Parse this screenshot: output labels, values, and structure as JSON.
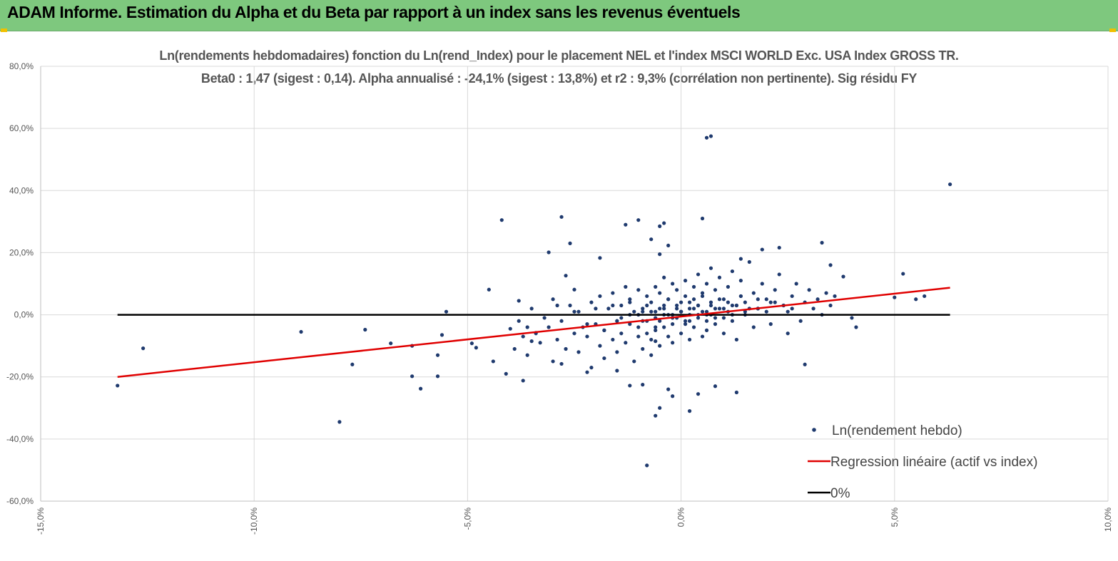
{
  "header": {
    "banner_title": "ADAM Informe. Estimation du Alpha et du Beta par rapport à un index sans les revenus éventuels"
  },
  "colors": {
    "banner": "#7ec87e",
    "points": "#1f3a6e",
    "regression": "#e00000",
    "zero_line": "#000000",
    "grid": "#d9d9d9"
  },
  "chart_data": {
    "type": "scatter",
    "title": "Ln(rendements hebdomadaires) fonction du Ln(rend_Index) pour le placement NEL et l'index MSCI WORLD Exc. USA Index GROSS TR.",
    "subtitle": "Beta0 : 1,47  (sigest : 0,14).  Alpha annualisé : -24,1% (sigest : 13,8%) et r2 : 9,3% (corrélation non pertinente). Sig résidu FY",
    "xlim": [
      -0.15,
      0.1
    ],
    "ylim": [
      -0.6,
      0.8
    ],
    "x_ticks": [
      "-15,0%",
      "-10,0%",
      "-5,0%",
      "0,0%",
      "5,0%",
      "10,0%"
    ],
    "y_ticks": [
      "80,0%",
      "60,0%",
      "40,0%",
      "20,0%",
      "0,0%",
      "-20,0%",
      "-40,0%",
      "-60,0%"
    ],
    "grid": true,
    "legend_position": "bottom-right",
    "legend": [
      "Ln(rendement hebdo)",
      "Regression linéaire (actif vs index)",
      "0%"
    ],
    "regression": {
      "x": [
        -0.132,
        0.063
      ],
      "y": [
        -0.2,
        0.087
      ]
    },
    "zero_line": {
      "x": [
        -0.132,
        0.063
      ],
      "y": [
        0,
        0
      ]
    },
    "points": {
      "x": [
        -0.132,
        -0.126,
        -0.089,
        -0.08,
        -0.077,
        -0.074,
        -0.068,
        -0.063,
        -0.063,
        -0.061,
        -0.057,
        -0.057,
        -0.056,
        -0.055,
        -0.049,
        -0.048,
        -0.045,
        -0.044,
        -0.042,
        -0.041,
        -0.038,
        -0.037,
        -0.036,
        -0.035,
        -0.034,
        -0.031,
        -0.029,
        -0.028,
        -0.028,
        -0.027,
        -0.026,
        -0.025,
        -0.022,
        -0.019,
        -0.015,
        -0.013,
        -0.012,
        -0.01,
        -0.009,
        -0.008,
        -0.007,
        -0.006,
        -0.006,
        -0.005,
        -0.005,
        -0.005,
        -0.004,
        -0.003,
        -0.003,
        -0.002,
        0.002,
        0.004,
        0.005,
        0.006,
        0.007,
        0.008,
        0.013,
        0.014,
        0.019,
        0.023,
        0.025,
        0.029,
        0.033,
        0.035,
        0.038,
        0.04,
        0.041,
        0.05,
        0.052,
        0.055,
        0.057,
        0.063,
        -0.04,
        -0.039,
        -0.038,
        -0.037,
        -0.036,
        -0.035,
        -0.034,
        -0.033,
        -0.032,
        -0.031,
        -0.03,
        -0.03,
        -0.029,
        -0.028,
        -0.027,
        -0.026,
        -0.025,
        -0.024,
        -0.024,
        -0.023,
        -0.022,
        -0.021,
        -0.021,
        -0.02,
        -0.019,
        -0.019,
        -0.018,
        -0.018,
        -0.017,
        -0.016,
        -0.016,
        -0.015,
        -0.015,
        -0.014,
        -0.014,
        -0.013,
        -0.013,
        -0.012,
        -0.012,
        -0.011,
        -0.011,
        -0.01,
        -0.01,
        -0.01,
        -0.009,
        -0.009,
        -0.008,
        -0.008,
        -0.008,
        -0.007,
        -0.007,
        -0.007,
        -0.006,
        -0.006,
        -0.006,
        -0.005,
        -0.005,
        -0.005,
        -0.004,
        -0.004,
        -0.004,
        -0.003,
        -0.003,
        -0.003,
        -0.002,
        -0.002,
        -0.002,
        -0.001,
        -0.001,
        -0.001,
        0.0,
        0.0,
        0.0,
        0.001,
        0.001,
        0.001,
        0.002,
        0.002,
        0.002,
        0.003,
        0.003,
        0.003,
        0.004,
        0.004,
        0.004,
        0.005,
        0.005,
        0.005,
        0.006,
        0.006,
        0.006,
        0.007,
        0.007,
        0.007,
        0.008,
        0.008,
        0.009,
        0.009,
        0.01,
        0.01,
        0.011,
        0.011,
        0.012,
        0.012,
        0.013,
        0.013,
        0.014,
        0.014,
        0.015,
        0.015,
        0.016,
        0.017,
        0.017,
        0.018,
        0.019,
        0.02,
        0.021,
        0.022,
        0.023,
        0.024,
        0.025,
        0.026,
        0.027,
        0.028,
        0.029,
        0.03,
        0.031,
        0.032,
        0.033,
        0.034,
        0.035,
        0.036,
        -0.025,
        -0.022,
        -0.02,
        -0.018,
        -0.016,
        -0.014,
        -0.012,
        -0.01,
        -0.009,
        -0.008,
        -0.007,
        -0.006,
        -0.005,
        -0.004,
        -0.003,
        -0.002,
        -0.001,
        0.0,
        0.001,
        0.002,
        0.003,
        0.004,
        0.005,
        0.006,
        0.007,
        0.008,
        0.009,
        0.01,
        0.011,
        0.012,
        0.013,
        0.014,
        0.016,
        0.018,
        0.02,
        0.022,
        0.024,
        0.026,
        -0.015,
        -0.012,
        -0.009,
        -0.006,
        -0.004,
        -0.002,
        0.0,
        0.002,
        0.004,
        0.006,
        0.008,
        0.01,
        0.012,
        0.015,
        0.018,
        0.021
      ],
      "y": [
        -0.228,
        -0.108,
        -0.055,
        -0.345,
        -0.16,
        -0.048,
        -0.092,
        -0.198,
        -0.1,
        -0.238,
        -0.198,
        -0.13,
        -0.065,
        0.01,
        -0.092,
        -0.106,
        0.081,
        -0.15,
        0.305,
        -0.19,
        0.045,
        -0.212,
        -0.04,
        -0.085,
        -0.058,
        0.201,
        0.03,
        0.315,
        -0.158,
        0.126,
        0.23,
        0.081,
        -0.185,
        0.183,
        -0.18,
        0.29,
        -0.228,
        0.305,
        -0.225,
        -0.485,
        0.243,
        -0.325,
        -0.085,
        0.285,
        0.195,
        -0.3,
        0.295,
        0.223,
        -0.24,
        -0.262,
        -0.31,
        -0.255,
        0.31,
        0.57,
        0.575,
        -0.23,
        -0.25,
        0.18,
        0.21,
        0.216,
        -0.06,
        -0.16,
        0.232,
        0.16,
        0.123,
        -0.01,
        -0.04,
        0.056,
        0.132,
        0.05,
        0.06,
        0.42,
        -0.045,
        -0.11,
        -0.02,
        -0.07,
        -0.13,
        0.02,
        -0.06,
        -0.09,
        -0.01,
        -0.04,
        -0.15,
        0.05,
        -0.08,
        -0.02,
        -0.11,
        0.03,
        -0.06,
        -0.12,
        0.01,
        -0.04,
        -0.07,
        -0.17,
        0.04,
        -0.03,
        -0.1,
        0.06,
        -0.05,
        -0.14,
        0.02,
        -0.08,
        0.07,
        -0.02,
        -0.12,
        0.03,
        -0.06,
        0.09,
        -0.09,
        -0.03,
        0.05,
        -0.15,
        0.01,
        -0.07,
        0.08,
        -0.04,
        -0.11,
        0.02,
        -0.06,
        0.06,
        -0.02,
        -0.13,
        0.04,
        -0.08,
        0.01,
        0.09,
        -0.05,
        -0.02,
        0.07,
        -0.1,
        0.03,
        -0.04,
        0.12,
        -0.07,
        0.0,
        0.05,
        -0.03,
        0.1,
        -0.09,
        0.02,
        -0.01,
        0.08,
        -0.06,
        0.04,
        0.01,
        -0.03,
        0.11,
        0.06,
        -0.08,
        0.02,
        0.0,
        0.09,
        -0.04,
        0.05,
        -0.01,
        0.13,
        0.03,
        -0.07,
        0.07,
        0.01,
        -0.02,
        0.1,
        -0.05,
        0.04,
        0.15,
        0.0,
        -0.03,
        0.08,
        0.02,
        0.12,
        -0.06,
        0.05,
        0.01,
        0.09,
        -0.02,
        0.14,
        0.03,
        -0.08,
        0.06,
        0.11,
        0.0,
        0.04,
        0.17,
        -0.04,
        0.07,
        0.02,
        0.1,
        0.05,
        -0.03,
        0.08,
        0.13,
        0.03,
        0.01,
        0.06,
        0.1,
        -0.02,
        0.04,
        0.08,
        0.02,
        0.05,
        0.0,
        0.07,
        0.03,
        0.06,
        0.01,
        -0.03,
        0.02,
        -0.05,
        0.03,
        -0.01,
        0.04,
        0.0,
        -0.02,
        0.03,
        0.01,
        -0.04,
        0.02,
        0.0,
        0.05,
        -0.01,
        0.03,
        0.01,
        -0.02,
        0.04,
        0.02,
        0.0,
        0.06,
        0.01,
        0.03,
        -0.01,
        0.05,
        0.02,
        0.04,
        0.0,
        0.03,
        0.06,
        0.02,
        0.05,
        0.01,
        0.04,
        0.03,
        0.02,
        -0.02,
        0.0,
        0.01,
        -0.01,
        0.02,
        0.0,
        0.01,
        -0.02,
        0.03,
        0.0,
        0.02,
        -0.01,
        0.03,
        0.01,
        0.02,
        0.04
      ]
    }
  }
}
